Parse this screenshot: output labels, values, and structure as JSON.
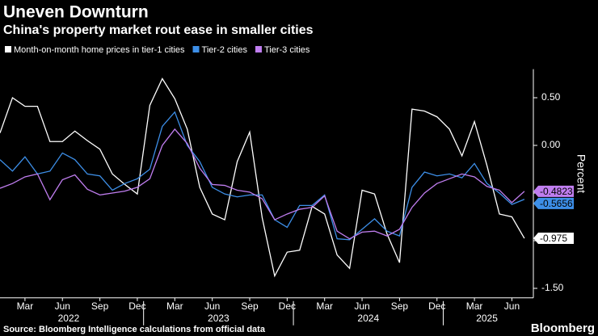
{
  "chart_data": {
    "type": "line",
    "title": "Uneven Downturn",
    "subtitle": "China's property market rout ease in smaller cities",
    "y_label": "Percent",
    "source": "Source: Bloomberg Intelligence calculations from official data",
    "brand": "Bloomberg",
    "categories": [
      null,
      null,
      "Mar",
      null,
      null,
      "Jun",
      null,
      null,
      "Sep",
      null,
      null,
      "Dec",
      null,
      null,
      "Mar",
      null,
      null,
      "Jun",
      null,
      null,
      "Sep",
      null,
      null,
      "Dec",
      null,
      null,
      "Mar",
      null,
      null,
      "Jun",
      null,
      null,
      "Sep",
      null,
      null,
      "Dec",
      null,
      null,
      "Mar",
      null,
      null,
      "Jun",
      null
    ],
    "years": [
      "2022",
      "2023",
      "2024",
      "2025"
    ],
    "ylim": [
      -1.6,
      0.8
    ],
    "yticks": [
      {
        "value": 0.5,
        "label": "0.50"
      },
      {
        "value": 0,
        "label": "0.00"
      },
      {
        "value": -0.5,
        "label": "-0.50"
      },
      {
        "value": -1,
        "label": "-1.00"
      },
      {
        "value": -1.5,
        "label": "-1.50"
      }
    ],
    "series": [
      {
        "name": "Month-on-month home prices in tier-1 cities",
        "color": "#ffffff",
        "values": [
          0.13,
          0.5,
          0.41,
          0.41,
          0.04,
          0.04,
          0.15,
          0.05,
          -0.04,
          -0.3,
          -0.41,
          -0.51,
          0.42,
          0.7,
          0.49,
          0.17,
          -0.44,
          -0.72,
          -0.78,
          -0.17,
          0.14,
          -0.76,
          -1.37,
          -1.12,
          -1.1,
          -0.64,
          -0.72,
          -1.15,
          -1.29,
          -0.47,
          -0.51,
          -0.93,
          -1.23,
          0.38,
          0.36,
          0.3,
          0.17,
          -0.11,
          0.25,
          -0.21,
          -0.72,
          -0.75,
          -0.975
        ]
      },
      {
        "name": "Tier-2 cities",
        "color": "#3d8fe8",
        "values": [
          -0.15,
          -0.27,
          -0.12,
          -0.3,
          -0.27,
          -0.08,
          -0.15,
          -0.3,
          -0.32,
          -0.47,
          -0.4,
          -0.35,
          -0.25,
          0.2,
          0.35,
          0,
          -0.17,
          -0.44,
          -0.51,
          -0.54,
          -0.52,
          -0.52,
          -0.78,
          -0.86,
          -0.63,
          -0.63,
          -0.52,
          -0.98,
          -0.99,
          -0.88,
          -0.77,
          -0.9,
          -0.95,
          -0.44,
          -0.28,
          -0.32,
          -0.3,
          -0.34,
          -0.19,
          -0.4,
          -0.5,
          -0.62,
          -0.5656
        ]
      },
      {
        "name": "Tier-3 cities",
        "color": "#c07ef0",
        "values": [
          -0.45,
          -0.4,
          -0.33,
          -0.3,
          -0.57,
          -0.36,
          -0.31,
          -0.46,
          -0.52,
          -0.5,
          -0.48,
          -0.44,
          -0.35,
          0,
          0.17,
          0.02,
          -0.24,
          -0.41,
          -0.42,
          -0.47,
          -0.49,
          -0.56,
          -0.78,
          -0.72,
          -0.67,
          -0.65,
          -0.53,
          -0.9,
          -0.98,
          -0.91,
          -0.9,
          -0.95,
          -0.88,
          -0.65,
          -0.5,
          -0.4,
          -0.35,
          -0.3,
          -0.33,
          -0.43,
          -0.47,
          -0.6,
          -0.4823
        ]
      }
    ]
  }
}
